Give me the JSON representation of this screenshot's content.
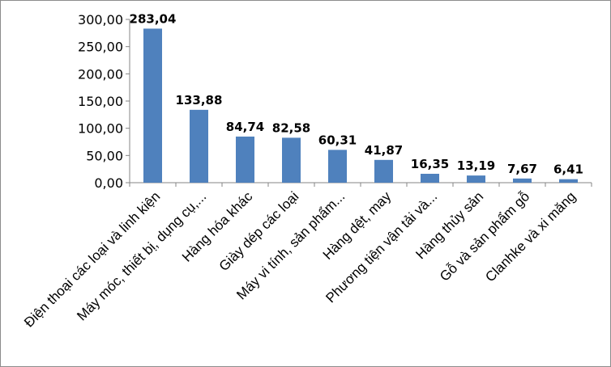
{
  "chart_data": {
    "type": "bar",
    "title": "",
    "xlabel": "",
    "ylabel": "",
    "categories": [
      "Điện thoại các loại và linh kiện",
      "Máy móc, thiết bị, dụng cụ,...",
      "Hàng hóa khác",
      "Giày dép các loại",
      "Máy vi tính, sản phẩm...",
      "Hàng dệt, may",
      "Phương tiện vận tải và...",
      "Hàng thủy sản",
      "Gỗ và sản phẩm gỗ",
      "Clanhke và xi măng"
    ],
    "values": [
      283.04,
      133.88,
      84.74,
      82.58,
      60.31,
      41.87,
      16.35,
      13.19,
      7.67,
      6.41
    ],
    "data_labels": [
      "283,04",
      "133,88",
      "84,74",
      "82,58",
      "60,31",
      "41,87",
      "16,35",
      "13,19",
      "7,67",
      "6,41"
    ],
    "yticks": [
      "0,00",
      "50,00",
      "100,00",
      "150,00",
      "200,00",
      "250,00",
      "300,00"
    ],
    "ylim": [
      0,
      300
    ],
    "grid": false,
    "legend": "none",
    "bar_color": "#4f81bd"
  }
}
